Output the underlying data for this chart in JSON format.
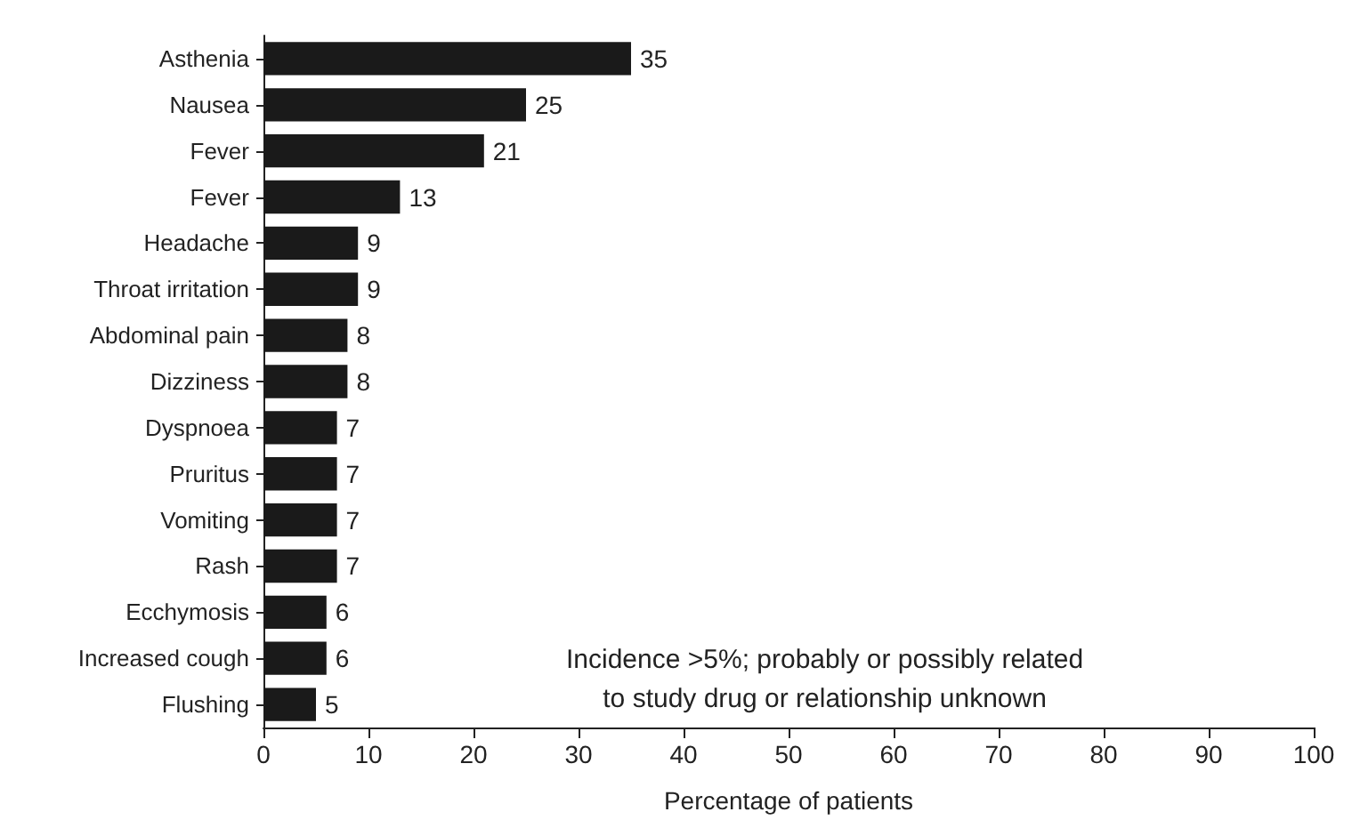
{
  "chart_data": {
    "type": "bar",
    "orientation": "horizontal",
    "xlabel": "Percentage of patients",
    "categories": [
      "Asthenia",
      "Nausea",
      "Fever",
      "Fever",
      "Headache",
      "Throat irritation",
      "Abdominal pain",
      "Dizziness",
      "Dyspnoea",
      "Pruritus",
      "Vomiting",
      "Rash",
      "Ecchymosis",
      "Increased cough",
      "Flushing"
    ],
    "values": [
      35,
      25,
      21,
      13,
      9,
      9,
      8,
      8,
      7,
      7,
      7,
      7,
      6,
      6,
      5
    ],
    "color": "#1a1a1a",
    "data_labels": true,
    "xlim": [
      0,
      100
    ],
    "xticks": [
      0,
      10,
      20,
      30,
      40,
      50,
      60,
      70,
      80,
      90,
      100
    ],
    "grid": false,
    "annotations": [
      "Incidence >5%; probably or possibly related\nto study drug or relationship unknown"
    ]
  }
}
